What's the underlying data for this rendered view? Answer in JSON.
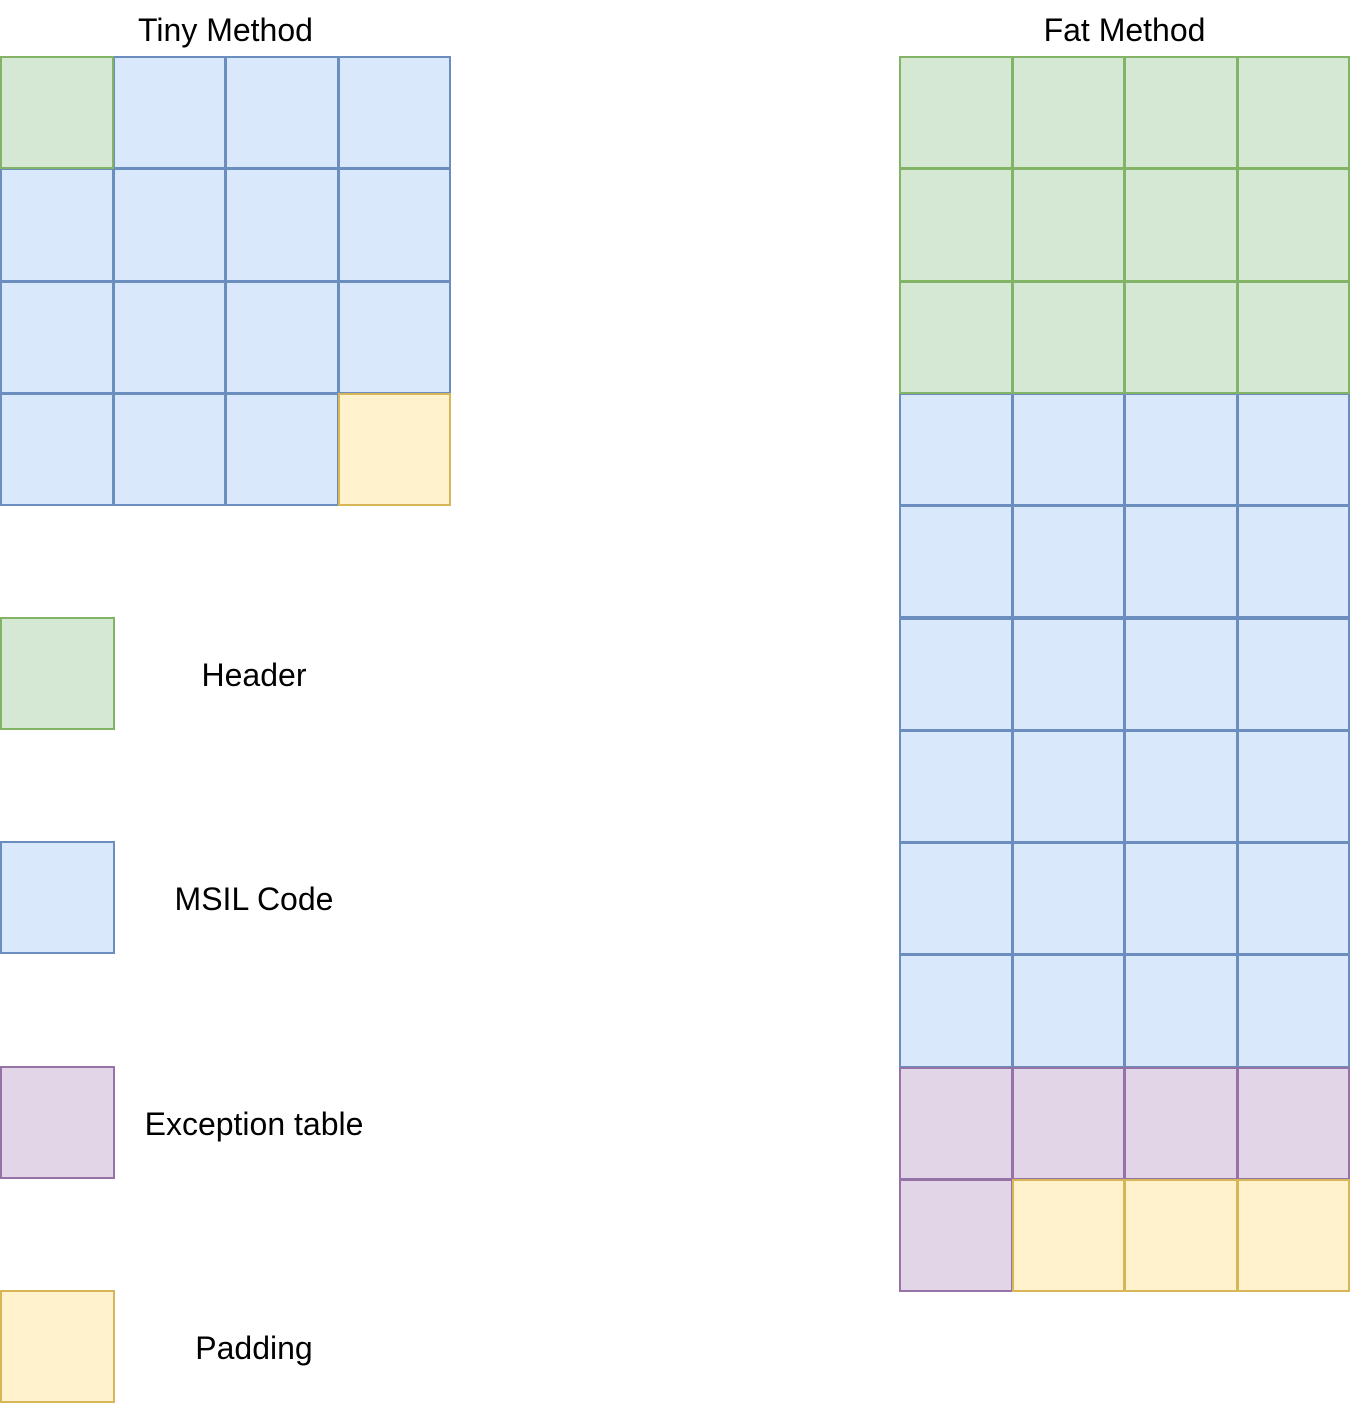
{
  "colors": {
    "header": {
      "fill": "#d5e8d4",
      "stroke": "#82b366"
    },
    "msil": {
      "fill": "#dae8fc",
      "stroke": "#6c8ebf"
    },
    "exception": {
      "fill": "#e1d5e7",
      "stroke": "#9673a6"
    },
    "padding": {
      "fill": "#fff2cc",
      "stroke": "#d6b656"
    }
  },
  "tiny": {
    "title": "Tiny Method",
    "columns": 4,
    "cells": [
      "header",
      "msil",
      "msil",
      "msil",
      "msil",
      "msil",
      "msil",
      "msil",
      "msil",
      "msil",
      "msil",
      "msil",
      "msil",
      "msil",
      "msil",
      "padding"
    ]
  },
  "fat": {
    "title": "Fat Method",
    "columns": 4,
    "cells": [
      "header",
      "header",
      "header",
      "header",
      "header",
      "header",
      "header",
      "header",
      "header",
      "header",
      "header",
      "header",
      "msil",
      "msil",
      "msil",
      "msil",
      "msil",
      "msil",
      "msil",
      "msil",
      "msil",
      "msil",
      "msil",
      "msil",
      "msil",
      "msil",
      "msil",
      "msil",
      "msil",
      "msil",
      "msil",
      "msil",
      "msil",
      "msil",
      "msil",
      "msil",
      "exception",
      "exception",
      "exception",
      "exception",
      "exception",
      "padding",
      "padding",
      "padding"
    ]
  },
  "legend": [
    {
      "kind": "header",
      "label": "Header"
    },
    {
      "kind": "msil",
      "label": "MSIL Code"
    },
    {
      "kind": "exception",
      "label": "Exception table"
    },
    {
      "kind": "padding",
      "label": "Padding"
    }
  ]
}
